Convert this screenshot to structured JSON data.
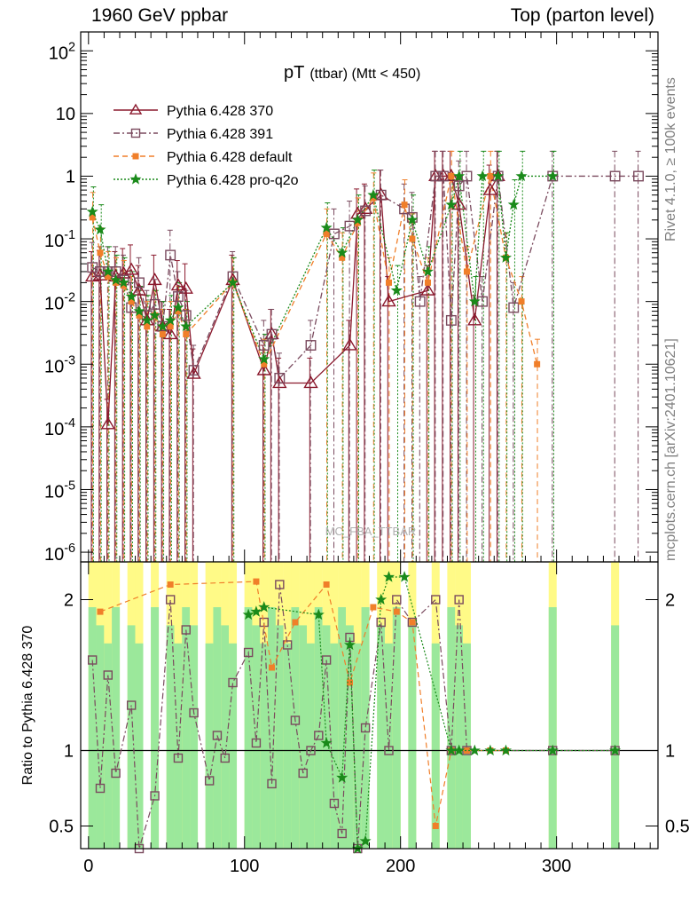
{
  "header": {
    "collider": "1960 GeV ppbar",
    "process": "Top (parton level)"
  },
  "side_labels": {
    "rivet": "Rivet 4.1.0, ≥ 100k events",
    "source": "mcplots.cern.ch [arXiv:2401.10621]"
  },
  "watermark": "MC_FBA_TTBAR",
  "chart_data": [
    {
      "type": "line",
      "panel": "main",
      "title": "pT",
      "title_sub": "(ttbar) (Mtt < 450)",
      "yscale": "log",
      "xlim": [
        -5,
        365
      ],
      "ylim": [
        7e-07,
        200
      ],
      "y_tick_labels": [
        "10^2",
        "10",
        "1",
        "10^-1",
        "10^-2",
        "10^-3",
        "10^-4",
        "10^-5",
        "10^-6"
      ],
      "legend_position": "top-left",
      "colors": {
        "Pythia 6.428 370": "#8b1a2e",
        "Pythia 6.428 391": "#7a4a5e",
        "Pythia 6.428 default": "#f07f2a",
        "Pythia 6.428 pro-q2o": "#1a8a1a"
      },
      "series": [
        {
          "name": "Pythia 6.428 370",
          "style": "solid",
          "marker": "triangle",
          "x": [
            2.5,
            7.5,
            12.5,
            17.5,
            22.5,
            27.5,
            32.5,
            37.5,
            42.5,
            47.5,
            52.5,
            57.5,
            62.5,
            67.5,
            92.5,
            112.5,
            117.5,
            122.5,
            142.5,
            167.5,
            172.5,
            177.5,
            187.5,
            192.5,
            217.5,
            222.5,
            227.5,
            232.5,
            237.5,
            247.5,
            257.5,
            262.5
          ],
          "y": [
            0.025,
            0.026,
            0.00011,
            0.025,
            0.028,
            0.032,
            0.015,
            0.005,
            0.022,
            0.004,
            0.003,
            0.018,
            0.016,
            0.0007,
            0.022,
            0.0008,
            0.003,
            0.0005,
            0.0005,
            0.002,
            0.25,
            0.3,
            0.5,
            0.01,
            0.015,
            1.0,
            1.0,
            1.0,
            0.35,
            0.005,
            0.6,
            1.0
          ]
        },
        {
          "name": "Pythia 6.428 391",
          "style": "dashdot",
          "marker": "square",
          "x": [
            2.5,
            7.5,
            12.5,
            17.5,
            22.5,
            27.5,
            32.5,
            37.5,
            42.5,
            47.5,
            52.5,
            57.5,
            62.5,
            67.5,
            92.5,
            112.5,
            117.5,
            122.5,
            142.5,
            157.5,
            167.5,
            177.5,
            187.5,
            202.5,
            207.5,
            212.5,
            222.5,
            227.5,
            232.5,
            237.5,
            242.5,
            252.5,
            262.5,
            272.5,
            297.5,
            337.5,
            352.5
          ],
          "y": [
            0.035,
            0.03,
            0.03,
            0.03,
            0.022,
            0.008,
            0.02,
            0.006,
            0.009,
            0.004,
            0.055,
            0.012,
            0.006,
            0.0008,
            0.025,
            0.002,
            0.003,
            0.0006,
            0.002,
            0.12,
            0.16,
            0.28,
            0.5,
            0.3,
            0.22,
            0.01,
            1.0,
            1.0,
            0.005,
            0.7,
            1.0,
            0.01,
            1.0,
            0.008,
            1.0,
            1.0,
            1.0
          ]
        },
        {
          "name": "Pythia 6.428 default",
          "style": "dashed",
          "marker": "circle",
          "x": [
            2.5,
            7.5,
            12.5,
            17.5,
            22.5,
            27.5,
            32.5,
            37.5,
            42.5,
            47.5,
            52.5,
            57.5,
            62.5,
            92.5,
            112.5,
            152.5,
            162.5,
            172.5,
            182.5,
            192.5,
            202.5,
            207.5,
            217.5,
            232.5,
            242.5,
            257.5,
            267.5,
            277.5,
            287.5
          ],
          "y": [
            0.22,
            0.06,
            0.025,
            0.02,
            0.018,
            0.01,
            0.006,
            0.004,
            0.006,
            0.003,
            0.004,
            0.007,
            0.003,
            0.02,
            0.001,
            0.12,
            0.05,
            0.18,
            0.45,
            0.02,
            0.35,
            0.1,
            0.02,
            1.0,
            0.03,
            1.0,
            0.05,
            0.01,
            0.001
          ]
        },
        {
          "name": "Pythia 6.428 pro-q2o",
          "style": "dotted",
          "marker": "star",
          "x": [
            2.5,
            7.5,
            12.5,
            17.5,
            22.5,
            27.5,
            32.5,
            37.5,
            42.5,
            47.5,
            52.5,
            57.5,
            62.5,
            92.5,
            112.5,
            152.5,
            162.5,
            172.5,
            182.5,
            197.5,
            207.5,
            217.5,
            232.5,
            237.5,
            247.5,
            252.5,
            262.5,
            267.5,
            272.5,
            277.5,
            297.5
          ],
          "y": [
            0.27,
            0.14,
            0.03,
            0.022,
            0.02,
            0.012,
            0.007,
            0.005,
            0.006,
            0.004,
            0.005,
            0.008,
            0.004,
            0.02,
            0.0012,
            0.15,
            0.06,
            0.2,
            0.5,
            0.015,
            0.2,
            0.03,
            0.35,
            1.0,
            0.01,
            1.0,
            1.0,
            0.05,
            0.35,
            1.0,
            1.0
          ]
        }
      ]
    },
    {
      "type": "line",
      "panel": "ratio",
      "ylabel": "Ratio to Pythia 6.428 370",
      "xlim": [
        -5,
        365
      ],
      "ylim": [
        0.35,
        2.25
      ],
      "x_ticks": [
        0,
        100,
        200,
        300
      ],
      "y_ticks": [
        0.5,
        1,
        2
      ],
      "series": [
        {
          "name": "Pythia 6.428 391",
          "x": [
            2.5,
            7.5,
            12.5,
            17.5,
            27.5,
            32.5,
            42.5,
            52.5,
            57.5,
            62.5,
            67.5,
            77.5,
            82.5,
            87.5,
            92.5,
            102.5,
            107.5,
            112.5,
            117.5,
            122.5,
            127.5,
            132.5,
            137.5,
            142.5,
            147.5,
            152.5,
            157.5,
            162.5,
            167.5,
            172.5,
            177.5,
            187.5,
            192.5,
            197.5,
            207.5,
            222.5,
            232.5,
            237.5,
            242.5,
            297.5,
            337.5
          ],
          "y": [
            1.6,
            0.75,
            1.5,
            0.85,
            1.3,
            0.35,
            0.7,
            2.0,
            0.95,
            1.8,
            1.25,
            0.8,
            1.1,
            0.95,
            1.45,
            1.65,
            1.05,
            1.85,
            0.78,
            2.1,
            1.7,
            1.2,
            0.85,
            1.0,
            1.1,
            1.6,
            0.65,
            0.45,
            1.75,
            0.35,
            1.15,
            1.85,
            1.0,
            2.0,
            1.85,
            2.0,
            1.0,
            2.0,
            1.0,
            1.0,
            1.0
          ]
        },
        {
          "name": "Pythia 6.428 default",
          "x": [
            7.5,
            52.5,
            107.5,
            117.5,
            132.5,
            152.5,
            167.5,
            182.5,
            197.5,
            207.5,
            222.5,
            232.5,
            242.5,
            257.5,
            267.5
          ],
          "y": [
            1.92,
            2.1,
            2.12,
            1.55,
            1.85,
            2.1,
            1.45,
            1.95,
            1.92,
            1.85,
            0.5,
            1.0,
            1.0,
            1.0,
            1.0
          ]
        },
        {
          "name": "Pythia 6.428 pro-q2o",
          "x": [
            102.5,
            107.5,
            112.5,
            147.5,
            152.5,
            162.5,
            167.5,
            172.5,
            177.5,
            187.5,
            192.5,
            202.5,
            232.5,
            237.5,
            247.5,
            257.5,
            267.5,
            297.5,
            337.5
          ],
          "y": [
            1.9,
            1.92,
            1.95,
            1.9,
            1.05,
            0.82,
            1.7,
            0.35,
            0.4,
            2.0,
            2.15,
            2.15,
            1.0,
            1.0,
            1.0,
            1.0,
            1.0,
            1.0,
            1.0
          ]
        }
      ]
    }
  ]
}
